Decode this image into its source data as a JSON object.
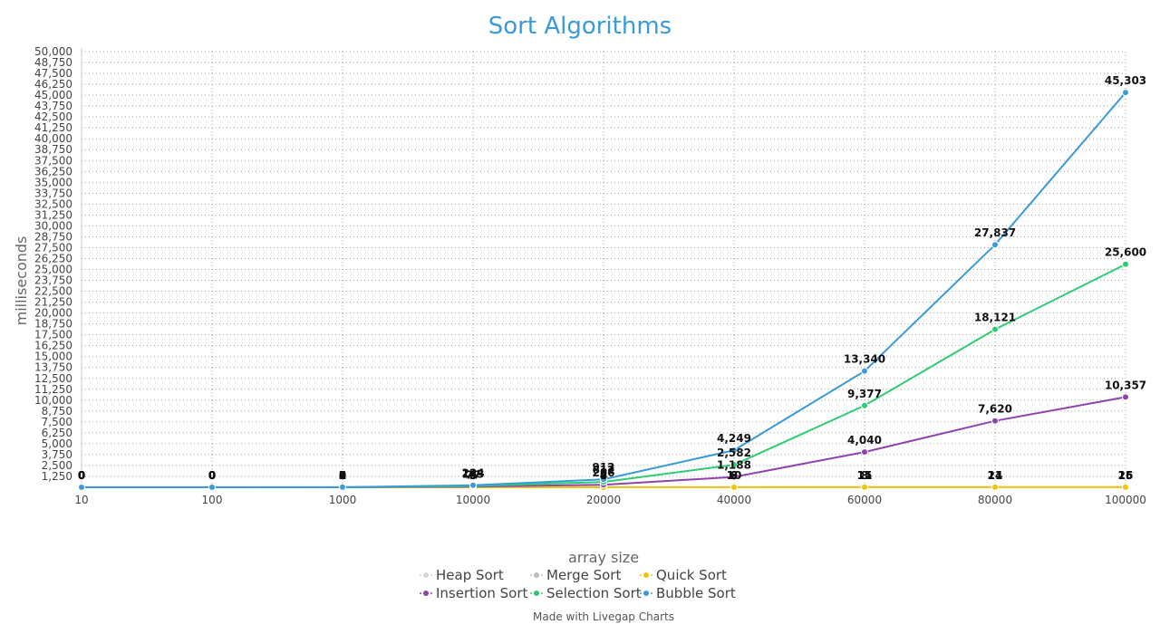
{
  "chart_data": {
    "type": "line",
    "title": "Sort Algorithms",
    "xlabel": "array size",
    "ylabel": "milliseconds",
    "categories": [
      "10",
      "100",
      "1000",
      "10000",
      "20000",
      "40000",
      "60000",
      "80000",
      "100000"
    ],
    "ylim": [
      0,
      50000
    ],
    "yticks": [
      "1,250",
      "2,500",
      "3,750",
      "5,000",
      "6,250",
      "7,500",
      "8,750",
      "10,000",
      "11,250",
      "12,500",
      "13,750",
      "15,000",
      "16,250",
      "17,500",
      "18,750",
      "20,000",
      "21,250",
      "22,500",
      "23,750",
      "25,000",
      "26,250",
      "27,500",
      "28,750",
      "30,000",
      "31,250",
      "32,500",
      "33,750",
      "35,000",
      "36,250",
      "37,500",
      "38,750",
      "40,000",
      "41,250",
      "42,500",
      "43,750",
      "45,000",
      "46,250",
      "47,500",
      "48,750",
      "50,000"
    ],
    "grid": true,
    "legend_position": "bottom",
    "series": [
      {
        "name": "Heap Sort",
        "color": "#d6d6d6",
        "values": [
          0,
          0,
          2,
          6,
          8,
          10,
          15,
          21,
          25
        ],
        "labels": [
          "0",
          "0",
          "2",
          "6",
          "8",
          "10",
          "15",
          "21",
          "25"
        ]
      },
      {
        "name": "Merge Sort",
        "color": "#bdbdbd",
        "values": [
          0,
          0,
          1,
          5,
          7,
          9,
          11,
          14,
          16
        ],
        "labels": [
          "0",
          "0",
          "1",
          "5",
          "7",
          "9",
          "11",
          "14",
          "16"
        ]
      },
      {
        "name": "Quick Sort",
        "color": "#f1c40f",
        "values": [
          0,
          0,
          0,
          3,
          4,
          6,
          8,
          11,
          15
        ],
        "labels": [
          "0",
          "0",
          "0",
          "3",
          "4",
          "6",
          "8",
          "11",
          "15"
        ]
      },
      {
        "name": "Insertion Sort",
        "color": "#8e44ad",
        "values": [
          0,
          0,
          5,
          77,
          286,
          1188,
          4040,
          7620,
          10357
        ],
        "labels": [
          "0",
          "0",
          "5",
          "77",
          "286",
          "1,188",
          "4,040",
          "7,620",
          "10,357"
        ]
      },
      {
        "name": "Selection Sort",
        "color": "#2ecc71",
        "values": [
          0,
          0,
          3,
          143,
          612,
          2582,
          9377,
          18121,
          25600
        ],
        "labels": [
          "0",
          "0",
          "3",
          "143",
          "612",
          "2,582",
          "9,377",
          "18,121",
          "25,600"
        ]
      },
      {
        "name": "Bubble Sort",
        "color": "#3a9ad9",
        "values": [
          0,
          0,
          8,
          234,
          912,
          4249,
          13340,
          27837,
          45303
        ],
        "labels": [
          "0",
          "0",
          "8",
          "234",
          "912",
          "4,249",
          "13,340",
          "27,837",
          "45,303"
        ]
      }
    ]
  },
  "footer": "Made with Livegap Charts"
}
